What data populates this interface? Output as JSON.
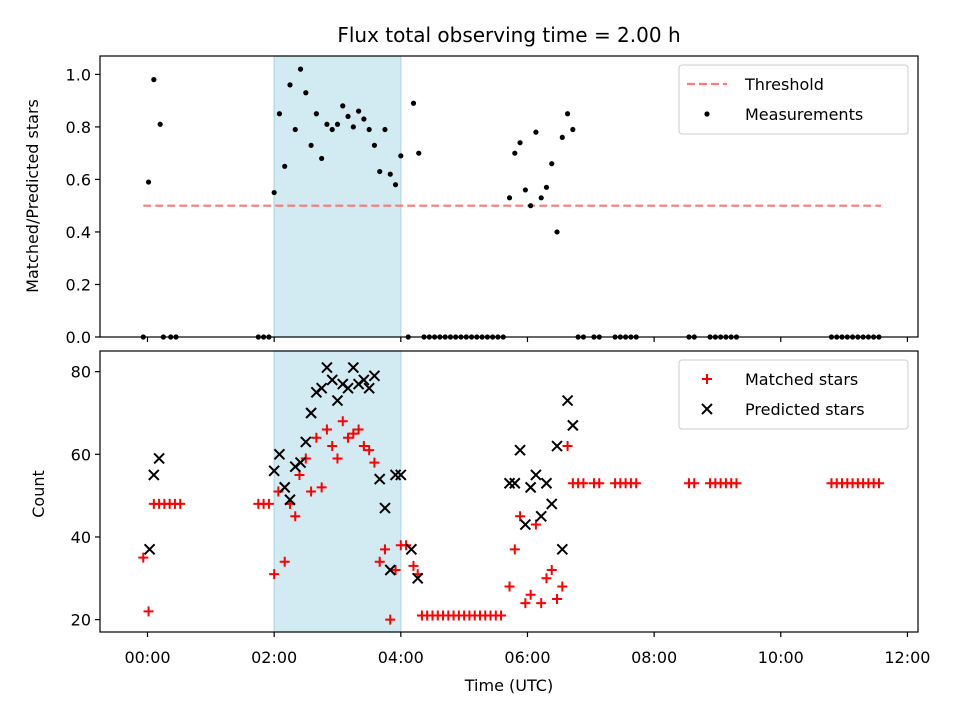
{
  "chart_data": [
    {
      "type": "scatter",
      "title": "Flux total observing time = 2.00 h",
      "xlabel": "",
      "ylabel": "Matched/Predicted stars",
      "xlim": [
        "23:15",
        "12:10"
      ],
      "ylim": [
        0,
        1.07
      ],
      "yticks": [
        "0.0",
        "0.2",
        "0.4",
        "0.6",
        "0.8",
        "1.0"
      ],
      "xticks": [
        "00:00",
        "02:00",
        "04:00",
        "06:00",
        "08:00",
        "10:00",
        "12:00"
      ],
      "highlight": {
        "x_start": "02:00",
        "x_end": "04:00",
        "color": "#add8e6"
      },
      "threshold": {
        "name": "Threshold",
        "y": 0.5,
        "x_start": "23:56",
        "x_end": "11:35",
        "color": "#ff7777"
      },
      "legend": {
        "position": "top-right",
        "entries": [
          "Threshold",
          "Measurements"
        ]
      },
      "series": [
        {
          "name": "Measurements",
          "color": "#000000",
          "points": [
            [
              "23:56",
              0.0
            ],
            [
              "00:01",
              0.59
            ],
            [
              "00:06",
              0.98
            ],
            [
              "00:12",
              0.81
            ],
            [
              "00:15",
              0.0
            ],
            [
              "00:22",
              0.0
            ],
            [
              "00:27",
              0.0
            ],
            [
              "01:45",
              0.0
            ],
            [
              "01:50",
              0.0
            ],
            [
              "01:55",
              0.0
            ],
            [
              "02:00",
              0.55
            ],
            [
              "02:05",
              0.85
            ],
            [
              "02:10",
              0.65
            ],
            [
              "02:15",
              0.96
            ],
            [
              "02:20",
              0.79
            ],
            [
              "02:25",
              1.02
            ],
            [
              "02:30",
              0.93
            ],
            [
              "02:35",
              0.73
            ],
            [
              "02:40",
              0.85
            ],
            [
              "02:45",
              0.68
            ],
            [
              "02:50",
              0.81
            ],
            [
              "02:55",
              0.79
            ],
            [
              "03:00",
              0.81
            ],
            [
              "03:05",
              0.88
            ],
            [
              "03:10",
              0.84
            ],
            [
              "03:15",
              0.8
            ],
            [
              "03:20",
              0.86
            ],
            [
              "03:25",
              0.83
            ],
            [
              "03:30",
              0.79
            ],
            [
              "03:35",
              0.73
            ],
            [
              "03:40",
              0.63
            ],
            [
              "03:45",
              0.79
            ],
            [
              "03:50",
              0.62
            ],
            [
              "03:55",
              0.58
            ],
            [
              "04:00",
              0.69
            ],
            [
              "04:07",
              0.0
            ],
            [
              "04:12",
              0.89
            ],
            [
              "04:17",
              0.7
            ],
            [
              "04:22",
              0.0
            ],
            [
              "04:27",
              0.0
            ],
            [
              "04:32",
              0.0
            ],
            [
              "04:37",
              0.0
            ],
            [
              "04:42",
              0.0
            ],
            [
              "04:47",
              0.0
            ],
            [
              "04:52",
              0.0
            ],
            [
              "04:57",
              0.0
            ],
            [
              "05:02",
              0.0
            ],
            [
              "05:07",
              0.0
            ],
            [
              "05:12",
              0.0
            ],
            [
              "05:17",
              0.0
            ],
            [
              "05:22",
              0.0
            ],
            [
              "05:27",
              0.0
            ],
            [
              "05:32",
              0.0
            ],
            [
              "05:37",
              0.0
            ],
            [
              "05:43",
              0.53
            ],
            [
              "05:48",
              0.7
            ],
            [
              "05:53",
              0.74
            ],
            [
              "05:58",
              0.56
            ],
            [
              "06:03",
              0.5
            ],
            [
              "06:08",
              0.78
            ],
            [
              "06:13",
              0.53
            ],
            [
              "06:18",
              0.57
            ],
            [
              "06:23",
              0.66
            ],
            [
              "06:28",
              0.4
            ],
            [
              "06:33",
              0.76
            ],
            [
              "06:38",
              0.85
            ],
            [
              "06:43",
              0.79
            ],
            [
              "06:48",
              0.0
            ],
            [
              "06:53",
              0.0
            ],
            [
              "07:03",
              0.0
            ],
            [
              "07:08",
              0.0
            ],
            [
              "07:23",
              0.0
            ],
            [
              "07:28",
              0.0
            ],
            [
              "07:33",
              0.0
            ],
            [
              "07:38",
              0.0
            ],
            [
              "07:43",
              0.0
            ],
            [
              "08:33",
              0.0
            ],
            [
              "08:38",
              0.0
            ],
            [
              "08:53",
              0.0
            ],
            [
              "08:58",
              0.0
            ],
            [
              "09:03",
              0.0
            ],
            [
              "09:08",
              0.0
            ],
            [
              "09:13",
              0.0
            ],
            [
              "09:18",
              0.0
            ],
            [
              "10:48",
              0.0
            ],
            [
              "10:53",
              0.0
            ],
            [
              "10:58",
              0.0
            ],
            [
              "11:03",
              0.0
            ],
            [
              "11:08",
              0.0
            ],
            [
              "11:13",
              0.0
            ],
            [
              "11:18",
              0.0
            ],
            [
              "11:23",
              0.0
            ],
            [
              "11:28",
              0.0
            ],
            [
              "11:33",
              0.0
            ]
          ]
        }
      ]
    },
    {
      "type": "scatter",
      "title": "",
      "xlabel": "Time (UTC)",
      "ylabel": "Count",
      "xlim": [
        "23:15",
        "12:10"
      ],
      "ylim": [
        17,
        85
      ],
      "yticks": [
        "20",
        "40",
        "60",
        "80"
      ],
      "xticks": [
        "00:00",
        "02:00",
        "04:00",
        "06:00",
        "08:00",
        "10:00",
        "12:00"
      ],
      "highlight": {
        "x_start": "02:00",
        "x_end": "04:00",
        "color": "#add8e6"
      },
      "legend": {
        "position": "top-right",
        "entries": [
          "Matched stars",
          "Predicted stars"
        ]
      },
      "series": [
        {
          "name": "Matched stars",
          "marker": "plus",
          "color": "#ff0000",
          "points": [
            [
              "23:56",
              35
            ],
            [
              "00:01",
              22
            ],
            [
              "00:06",
              48
            ],
            [
              "00:11",
              48
            ],
            [
              "00:16",
              48
            ],
            [
              "00:21",
              48
            ],
            [
              "00:26",
              48
            ],
            [
              "00:31",
              48
            ],
            [
              "01:45",
              48
            ],
            [
              "01:50",
              48
            ],
            [
              "01:55",
              48
            ],
            [
              "02:00",
              31
            ],
            [
              "02:04",
              51
            ],
            [
              "02:10",
              34
            ],
            [
              "02:15",
              48
            ],
            [
              "02:20",
              45
            ],
            [
              "02:24",
              55
            ],
            [
              "02:30",
              59
            ],
            [
              "02:35",
              51
            ],
            [
              "02:40",
              64
            ],
            [
              "02:45",
              52
            ],
            [
              "02:50",
              66
            ],
            [
              "02:55",
              62
            ],
            [
              "03:00",
              59
            ],
            [
              "03:05",
              68
            ],
            [
              "03:10",
              64
            ],
            [
              "03:15",
              65
            ],
            [
              "03:20",
              66
            ],
            [
              "03:25",
              62
            ],
            [
              "03:30",
              61
            ],
            [
              "03:35",
              58
            ],
            [
              "03:40",
              34
            ],
            [
              "03:45",
              37
            ],
            [
              "03:50",
              20
            ],
            [
              "03:55",
              32
            ],
            [
              "04:00",
              38
            ],
            [
              "04:05",
              38
            ],
            [
              "04:12",
              33
            ],
            [
              "04:16",
              31
            ],
            [
              "04:20",
              21
            ],
            [
              "04:25",
              21
            ],
            [
              "04:30",
              21
            ],
            [
              "04:35",
              21
            ],
            [
              "04:40",
              21
            ],
            [
              "04:45",
              21
            ],
            [
              "04:50",
              21
            ],
            [
              "04:55",
              21
            ],
            [
              "05:00",
              21
            ],
            [
              "05:05",
              21
            ],
            [
              "05:10",
              21
            ],
            [
              "05:15",
              21
            ],
            [
              "05:20",
              21
            ],
            [
              "05:25",
              21
            ],
            [
              "05:30",
              21
            ],
            [
              "05:35",
              21
            ],
            [
              "05:43",
              28
            ],
            [
              "05:48",
              37
            ],
            [
              "05:53",
              45
            ],
            [
              "05:58",
              24
            ],
            [
              "06:03",
              26
            ],
            [
              "06:08",
              43
            ],
            [
              "06:13",
              24
            ],
            [
              "06:18",
              30
            ],
            [
              "06:23",
              32
            ],
            [
              "06:28",
              25
            ],
            [
              "06:33",
              28
            ],
            [
              "06:38",
              62
            ],
            [
              "06:43",
              53
            ],
            [
              "06:48",
              53
            ],
            [
              "06:53",
              53
            ],
            [
              "07:03",
              53
            ],
            [
              "07:08",
              53
            ],
            [
              "07:23",
              53
            ],
            [
              "07:28",
              53
            ],
            [
              "07:33",
              53
            ],
            [
              "07:38",
              53
            ],
            [
              "07:43",
              53
            ],
            [
              "08:33",
              53
            ],
            [
              "08:38",
              53
            ],
            [
              "08:53",
              53
            ],
            [
              "08:58",
              53
            ],
            [
              "09:03",
              53
            ],
            [
              "09:08",
              53
            ],
            [
              "09:13",
              53
            ],
            [
              "09:18",
              53
            ],
            [
              "10:48",
              53
            ],
            [
              "10:53",
              53
            ],
            [
              "10:58",
              53
            ],
            [
              "11:03",
              53
            ],
            [
              "11:08",
              53
            ],
            [
              "11:13",
              53
            ],
            [
              "11:18",
              53
            ],
            [
              "11:23",
              53
            ],
            [
              "11:28",
              53
            ],
            [
              "11:33",
              53
            ]
          ]
        },
        {
          "name": "Predicted stars",
          "marker": "x",
          "color": "#000000",
          "points": [
            [
              "00:02",
              37
            ],
            [
              "00:06",
              55
            ],
            [
              "00:11",
              59
            ],
            [
              "02:00",
              56
            ],
            [
              "02:05",
              60
            ],
            [
              "02:10",
              52
            ],
            [
              "02:15",
              49
            ],
            [
              "02:20",
              57
            ],
            [
              "02:25",
              58
            ],
            [
              "02:30",
              63
            ],
            [
              "02:35",
              70
            ],
            [
              "02:40",
              75
            ],
            [
              "02:45",
              76
            ],
            [
              "02:50",
              81
            ],
            [
              "02:55",
              78
            ],
            [
              "03:00",
              73
            ],
            [
              "03:05",
              77
            ],
            [
              "03:10",
              76
            ],
            [
              "03:15",
              81
            ],
            [
              "03:20",
              77
            ],
            [
              "03:25",
              78
            ],
            [
              "03:30",
              76
            ],
            [
              "03:35",
              79
            ],
            [
              "03:40",
              54
            ],
            [
              "03:45",
              47
            ],
            [
              "03:50",
              32
            ],
            [
              "03:55",
              55
            ],
            [
              "04:00",
              55
            ],
            [
              "04:10",
              37
            ],
            [
              "04:16",
              30
            ],
            [
              "05:43",
              53
            ],
            [
              "05:48",
              53
            ],
            [
              "05:53",
              61
            ],
            [
              "05:58",
              43
            ],
            [
              "06:03",
              52
            ],
            [
              "06:08",
              55
            ],
            [
              "06:13",
              45
            ],
            [
              "06:18",
              53
            ],
            [
              "06:23",
              48
            ],
            [
              "06:28",
              62
            ],
            [
              "06:33",
              37
            ],
            [
              "06:38",
              73
            ],
            [
              "06:43",
              67
            ]
          ]
        }
      ]
    }
  ]
}
